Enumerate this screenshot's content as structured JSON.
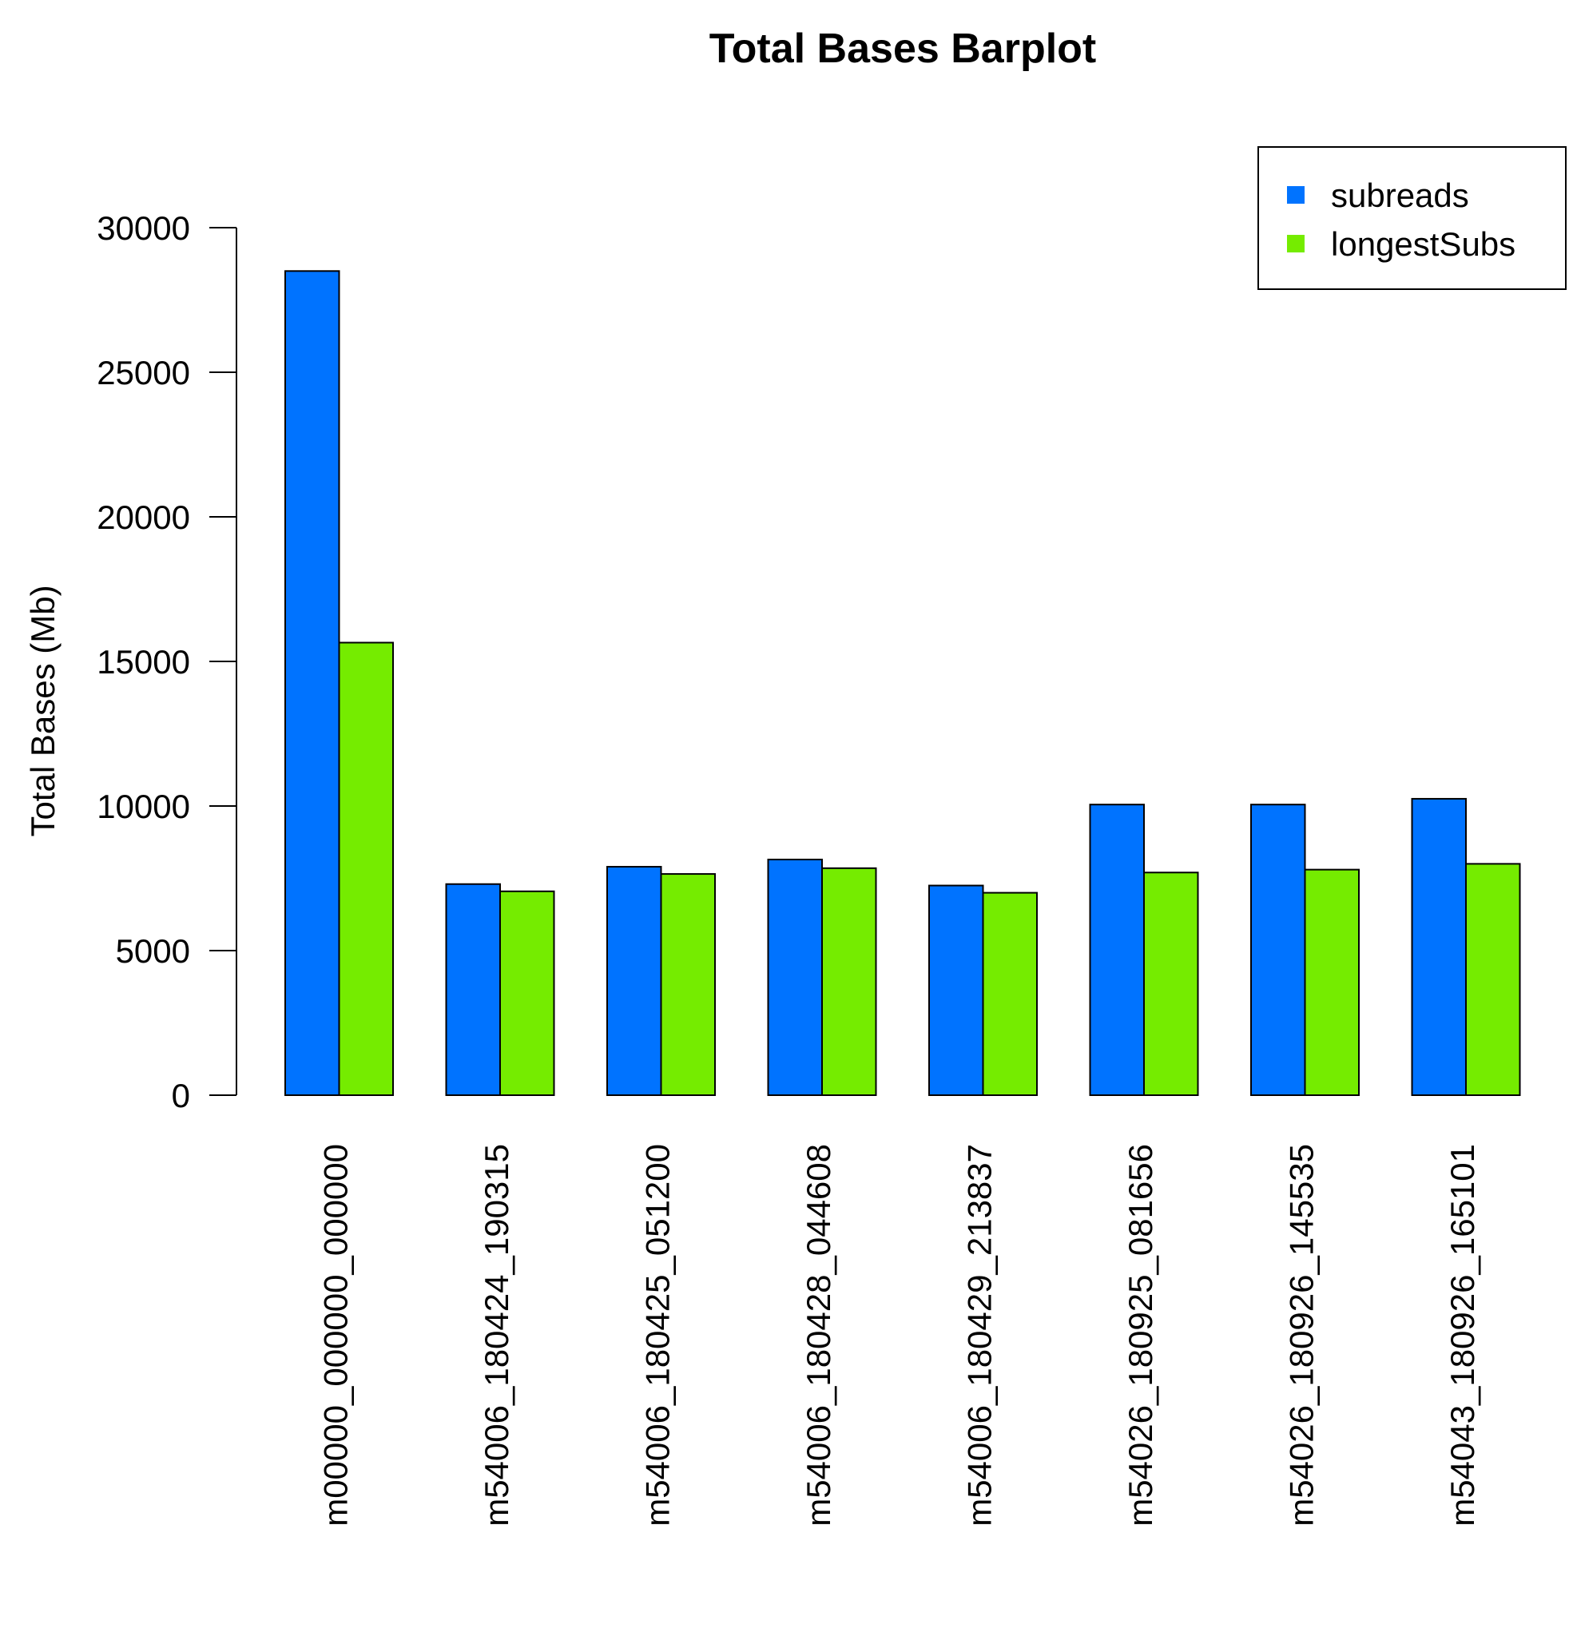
{
  "chart_data": {
    "type": "bar",
    "title": "Total Bases Barplot",
    "xlabel": "",
    "ylabel": "Total Bases (Mb)",
    "ylim": [
      0,
      30000
    ],
    "yticks": [
      "0",
      "5000",
      "10000",
      "15000",
      "20000",
      "25000",
      "30000"
    ],
    "categories": [
      "m00000_000000_000000",
      "m54006_180424_190315",
      "m54006_180425_051200",
      "m54006_180428_044608",
      "m54006_180429_213837",
      "m54026_180925_081656",
      "m54026_180926_145535",
      "m54043_180926_165101"
    ],
    "series": [
      {
        "name": "subreads",
        "color": "#0073FF",
        "values": [
          28500,
          7300,
          7900,
          8150,
          7250,
          10050,
          10050,
          10250
        ]
      },
      {
        "name": "longestSubs",
        "color": "#75EC00",
        "values": [
          15650,
          7050,
          7650,
          7850,
          7000,
          7700,
          7800,
          8000
        ]
      }
    ],
    "legend_position": "top-right",
    "grid": false
  }
}
